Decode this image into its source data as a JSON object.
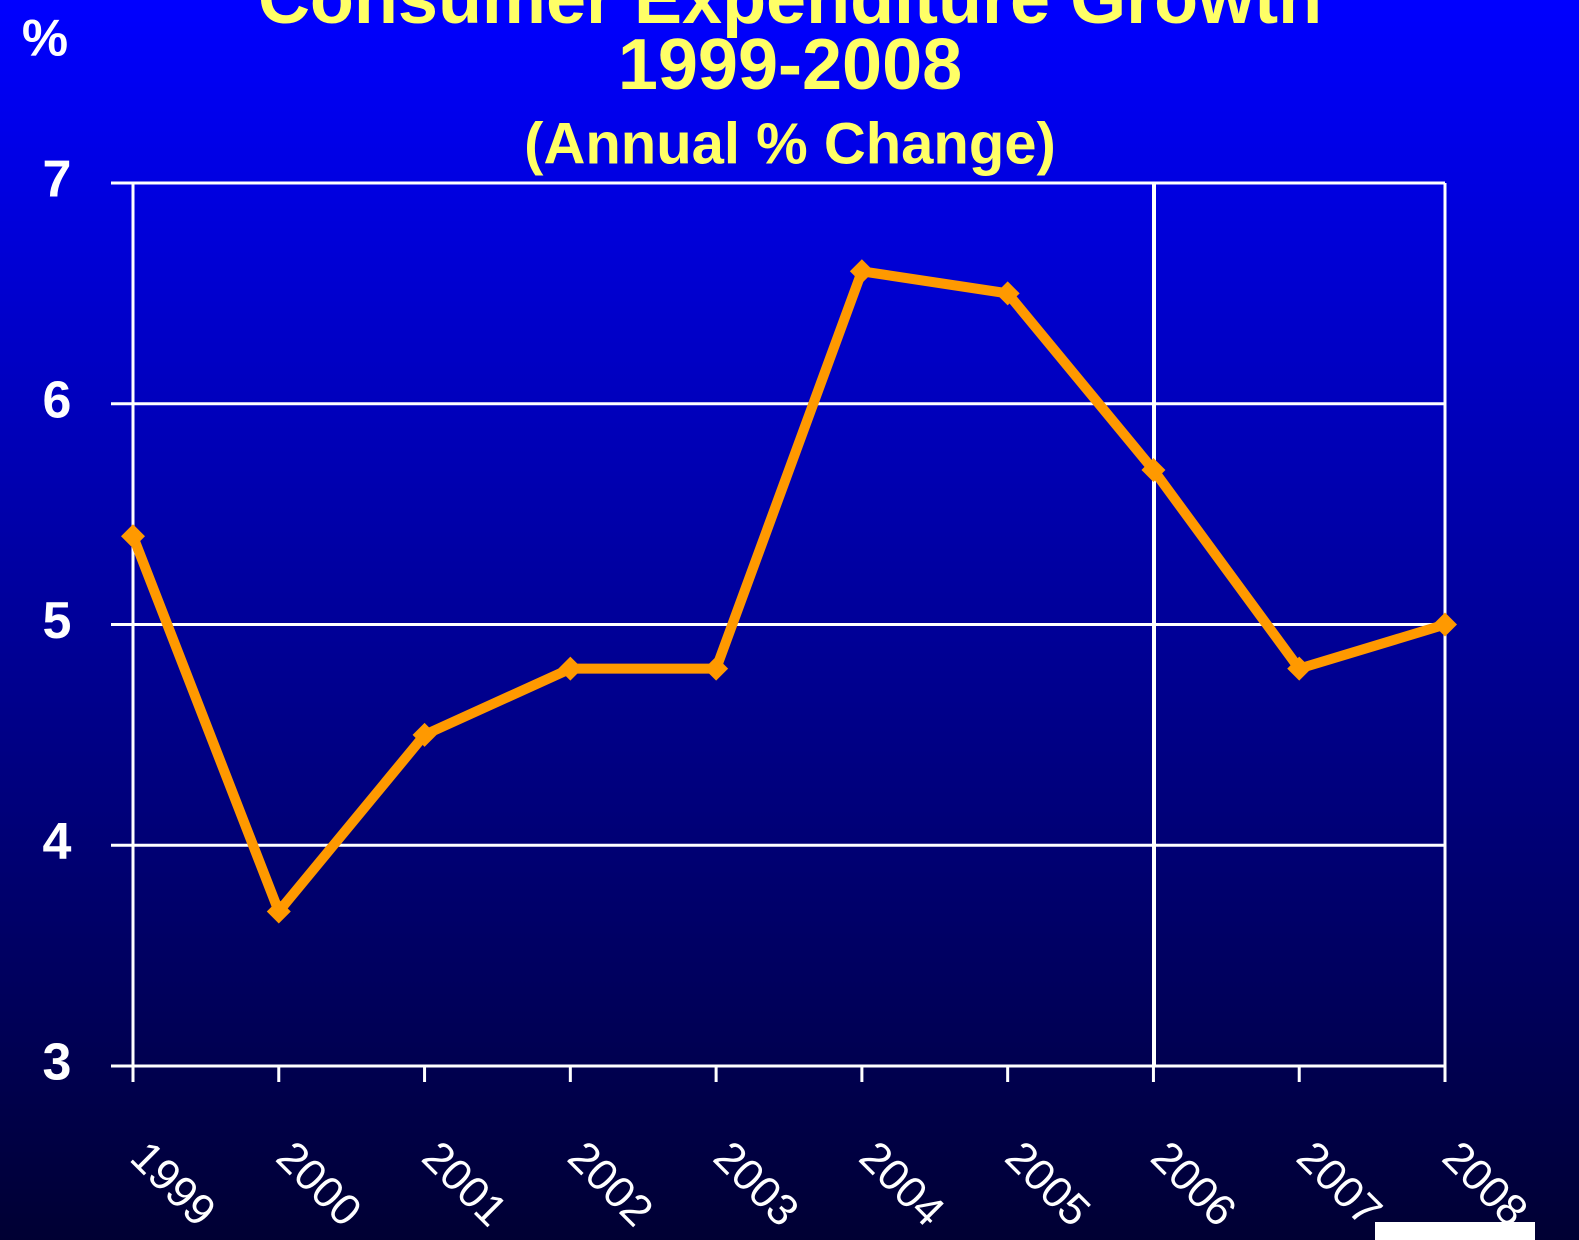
{
  "chart_data": {
    "type": "line",
    "title": [
      "Consumer Expenditure Growth",
      "1999-2008"
    ],
    "subtitle": "(Annual % Change)",
    "y_label": "%",
    "categories": [
      "1999",
      "2000",
      "2001",
      "2002",
      "2003",
      "2004",
      "2005",
      "2006",
      "2007",
      "2008"
    ],
    "series": [
      {
        "name": "Consumer Expenditure Growth",
        "color": "#ff9900",
        "values": [
          5.4,
          3.7,
          4.5,
          4.8,
          4.8,
          6.6,
          6.5,
          5.7,
          4.8,
          5.0
        ]
      }
    ],
    "ylim": [
      3,
      7
    ],
    "yticks": [
      3,
      4,
      5,
      6,
      7
    ],
    "grid": true
  }
}
